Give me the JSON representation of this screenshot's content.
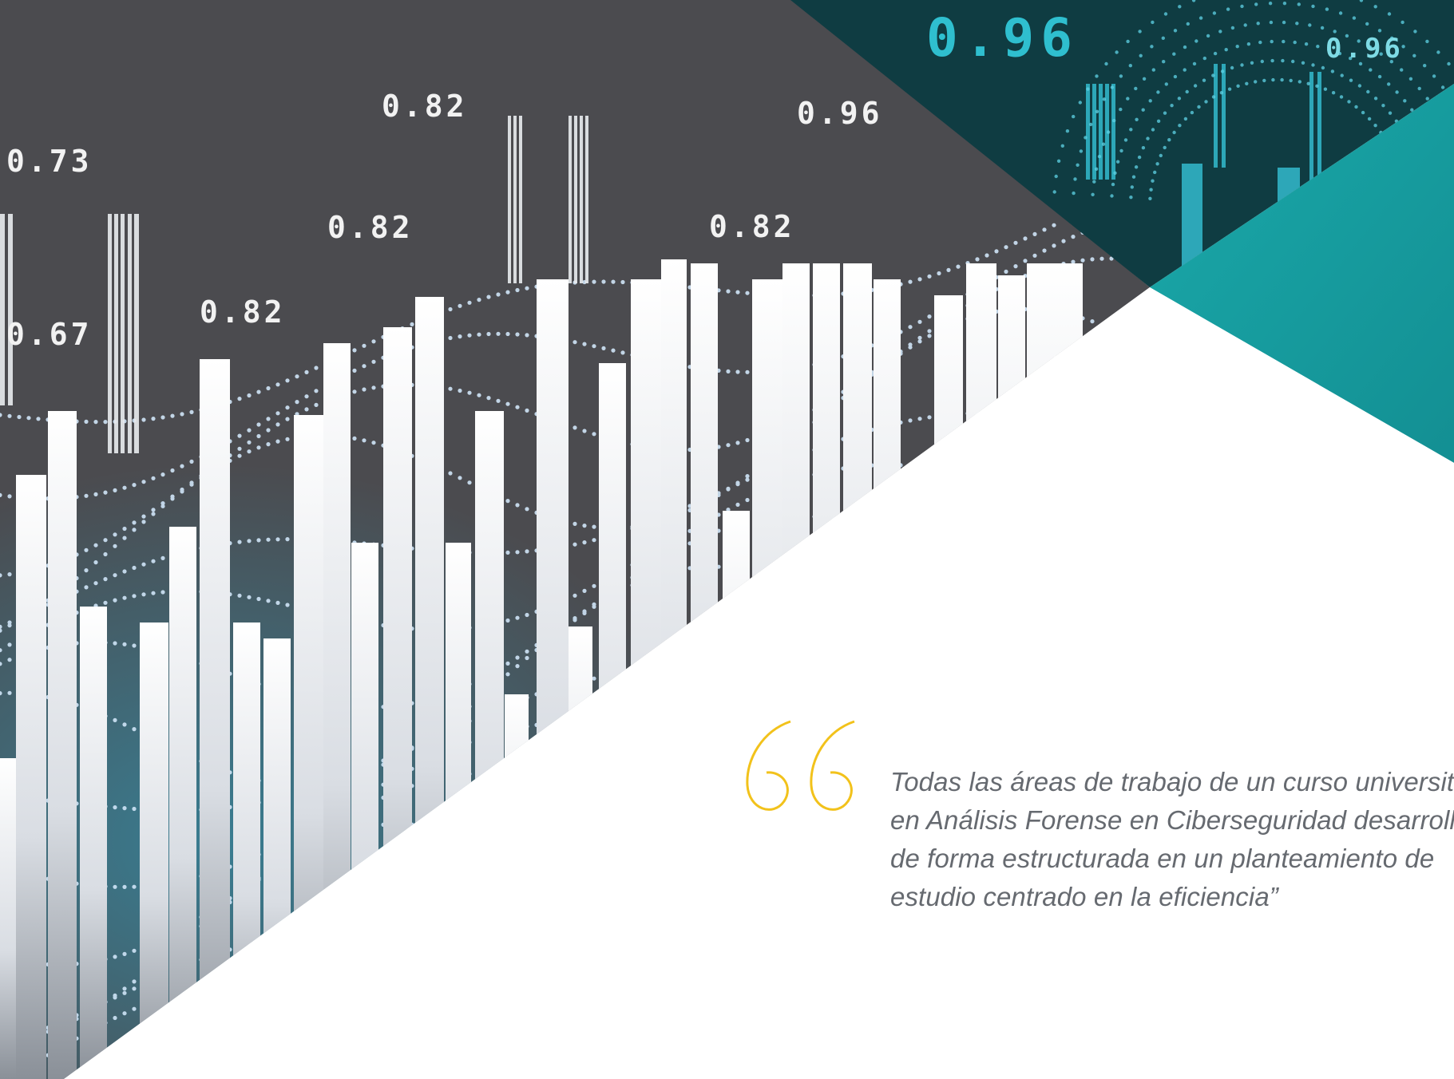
{
  "background": {
    "colors": {
      "dark": "#4a4a4e",
      "teal_dark": "#0f3a40",
      "teal_band": "#17a3a6",
      "accent_quote": "#f2c21b"
    },
    "labels": {
      "l1": "0.73",
      "l2": "0.67",
      "l3": "0.82",
      "l4": "0.82",
      "l5": "0.82",
      "l6": "0.96",
      "l7": "0.82",
      "l8": "0.96",
      "l9": "0.96"
    }
  },
  "quote": {
    "icon": "double-quote-icon",
    "lines": [
      "Todas las áreas de trabajo de un curso universitario",
      "en Análisis Forense en Ciberseguridad desarrolladas",
      "de forma estructurada en un planteamiento de",
      "estudio centrado en la eficiencia”"
    ]
  }
}
